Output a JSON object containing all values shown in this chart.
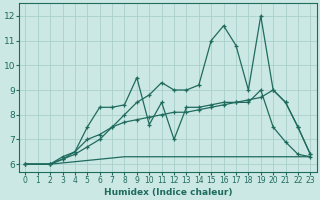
{
  "xlabel": "Humidex (Indice chaleur)",
  "bg_color": "#cce8e4",
  "grid_color": "#aacfcb",
  "line_color": "#1f6b5e",
  "xlim": [
    -0.5,
    23.5
  ],
  "ylim": [
    5.7,
    12.5
  ],
  "xticks": [
    0,
    1,
    2,
    3,
    4,
    5,
    6,
    7,
    8,
    9,
    10,
    11,
    12,
    13,
    14,
    15,
    16,
    17,
    18,
    19,
    20,
    21,
    22,
    23
  ],
  "yticks": [
    6,
    7,
    8,
    9,
    10,
    11,
    12
  ],
  "series": [
    {
      "x": [
        0,
        1,
        2,
        3,
        4,
        5,
        6,
        7,
        8,
        9,
        10,
        11,
        12,
        13,
        14,
        15,
        16,
        17,
        18,
        19,
        20,
        21,
        22,
        23
      ],
      "y": [
        6.0,
        6.0,
        6.0,
        6.05,
        6.1,
        6.15,
        6.2,
        6.25,
        6.3,
        6.3,
        6.3,
        6.3,
        6.3,
        6.3,
        6.3,
        6.3,
        6.3,
        6.3,
        6.3,
        6.3,
        6.3,
        6.3,
        6.3,
        6.3
      ],
      "marker": null
    },
    {
      "x": [
        0,
        2,
        3,
        4,
        5,
        6,
        7,
        8,
        9,
        10,
        11,
        12,
        13,
        14,
        15,
        16,
        17,
        18,
        19,
        20,
        21,
        22,
        23
      ],
      "y": [
        6.0,
        6.0,
        6.2,
        6.5,
        7.0,
        7.2,
        7.5,
        7.7,
        7.8,
        7.9,
        8.0,
        8.1,
        8.1,
        8.2,
        8.3,
        8.4,
        8.5,
        8.6,
        8.7,
        9.0,
        8.5,
        7.5,
        6.4
      ],
      "marker": "+"
    },
    {
      "x": [
        0,
        2,
        3,
        4,
        5,
        6,
        7,
        8,
        9,
        10,
        11,
        12,
        13,
        14,
        15,
        16,
        17,
        18,
        19,
        20,
        21,
        22,
        23
      ],
      "y": [
        6.0,
        6.0,
        6.3,
        6.5,
        7.5,
        8.3,
        8.3,
        8.4,
        9.5,
        7.6,
        8.5,
        7.0,
        8.3,
        8.3,
        8.4,
        8.5,
        8.5,
        8.5,
        9.0,
        7.5,
        6.9,
        6.4,
        6.3
      ],
      "marker": "+"
    },
    {
      "comment": "high volatility line, peaks at x=16~11.6, x=17~10.8, x=19~12",
      "x": [
        0,
        2,
        3,
        4,
        5,
        6,
        7,
        8,
        9,
        10,
        11,
        12,
        13,
        14,
        15,
        16,
        17,
        18,
        19,
        20,
        21,
        22,
        23
      ],
      "y": [
        6.0,
        6.0,
        6.2,
        6.4,
        6.7,
        7.0,
        7.5,
        8.0,
        8.5,
        8.8,
        9.3,
        9.0,
        9.0,
        9.2,
        11.0,
        11.6,
        10.8,
        9.0,
        12.0,
        9.0,
        8.5,
        7.5,
        6.4
      ],
      "marker": "+"
    }
  ]
}
